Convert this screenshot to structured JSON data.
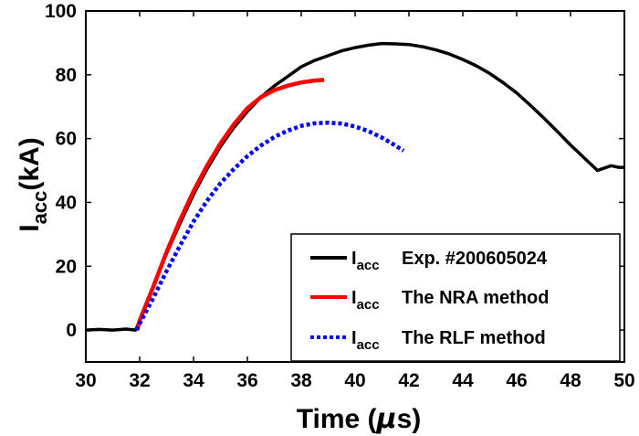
{
  "chart_data": {
    "type": "line",
    "title": "",
    "xlabel": "Time (",
    "xlabel_mu": "μ",
    "xlabel_unit": "s)",
    "ylabel_main": "I",
    "ylabel_sub": "acc",
    "ylabel_unit": "(kA)",
    "xlim": [
      30,
      50
    ],
    "ylim": [
      -10,
      100
    ],
    "xticks": [
      30,
      32,
      34,
      36,
      38,
      40,
      42,
      44,
      46,
      48,
      50
    ],
    "yticks": [
      0,
      20,
      40,
      60,
      80,
      100
    ],
    "grid": false,
    "legend_position": "bottom-right",
    "series": [
      {
        "name": "Exp. #200605024",
        "legend_main": "I",
        "legend_sub": "acc",
        "legend_text": "Exp. #200605024",
        "color": "#000000",
        "style": "solid",
        "x": [
          30,
          30.5,
          31,
          31.5,
          31.85,
          32,
          32.5,
          33,
          33.5,
          34,
          34.5,
          35,
          35.5,
          36,
          36.5,
          37,
          37.5,
          38,
          38.5,
          39,
          39.5,
          40,
          40.5,
          41,
          41.5,
          42,
          42.5,
          43,
          43.5,
          44,
          44.5,
          45,
          45.5,
          46,
          46.5,
          47,
          47.5,
          48,
          48.5,
          49,
          49.5,
          49.8,
          50
        ],
        "y": [
          0,
          0.2,
          0,
          0.3,
          0,
          3,
          13.5,
          24,
          33.5,
          42.5,
          50.5,
          57.5,
          63.5,
          68.5,
          73,
          76.5,
          79.5,
          82.5,
          84.5,
          86,
          87.5,
          88.5,
          89.3,
          89.8,
          89.7,
          89.5,
          88.8,
          87.8,
          86.5,
          84.8,
          82.8,
          80.4,
          77.5,
          74.3,
          70.5,
          66.5,
          62.3,
          58,
          54,
          50,
          51.5,
          51,
          51
        ]
      },
      {
        "name": "The NRA method",
        "legend_main": "I",
        "legend_sub": "acc",
        "legend_text": "The NRA method",
        "color": "#ff0000",
        "style": "solid",
        "x": [
          31.9,
          32,
          32.5,
          33,
          33.5,
          34,
          34.5,
          35,
          35.5,
          36,
          36.5,
          37,
          37.5,
          38,
          38.5,
          38.85
        ],
        "y": [
          0,
          3,
          13.5,
          24.5,
          34.5,
          43.5,
          51.5,
          58.5,
          64.5,
          69.5,
          73,
          75.2,
          76.6,
          77.6,
          78.2,
          78.4
        ]
      },
      {
        "name": "The RLF method",
        "legend_main": "I",
        "legend_sub": "acc",
        "legend_text": "The RLF method",
        "color": "#0000ff",
        "style": "dotted",
        "x": [
          31.9,
          32,
          32.5,
          33,
          33.5,
          34,
          34.5,
          35,
          35.5,
          36,
          36.5,
          37,
          37.5,
          38,
          38.5,
          39,
          39.5,
          40,
          40.5,
          41,
          41.5,
          41.8
        ],
        "y": [
          0,
          2,
          10,
          18.5,
          26.5,
          34,
          40.5,
          46,
          50.5,
          54.5,
          57.8,
          60.5,
          62.5,
          64,
          64.8,
          65,
          64.7,
          63.8,
          62.3,
          60.3,
          57.8,
          56.2
        ]
      }
    ]
  }
}
